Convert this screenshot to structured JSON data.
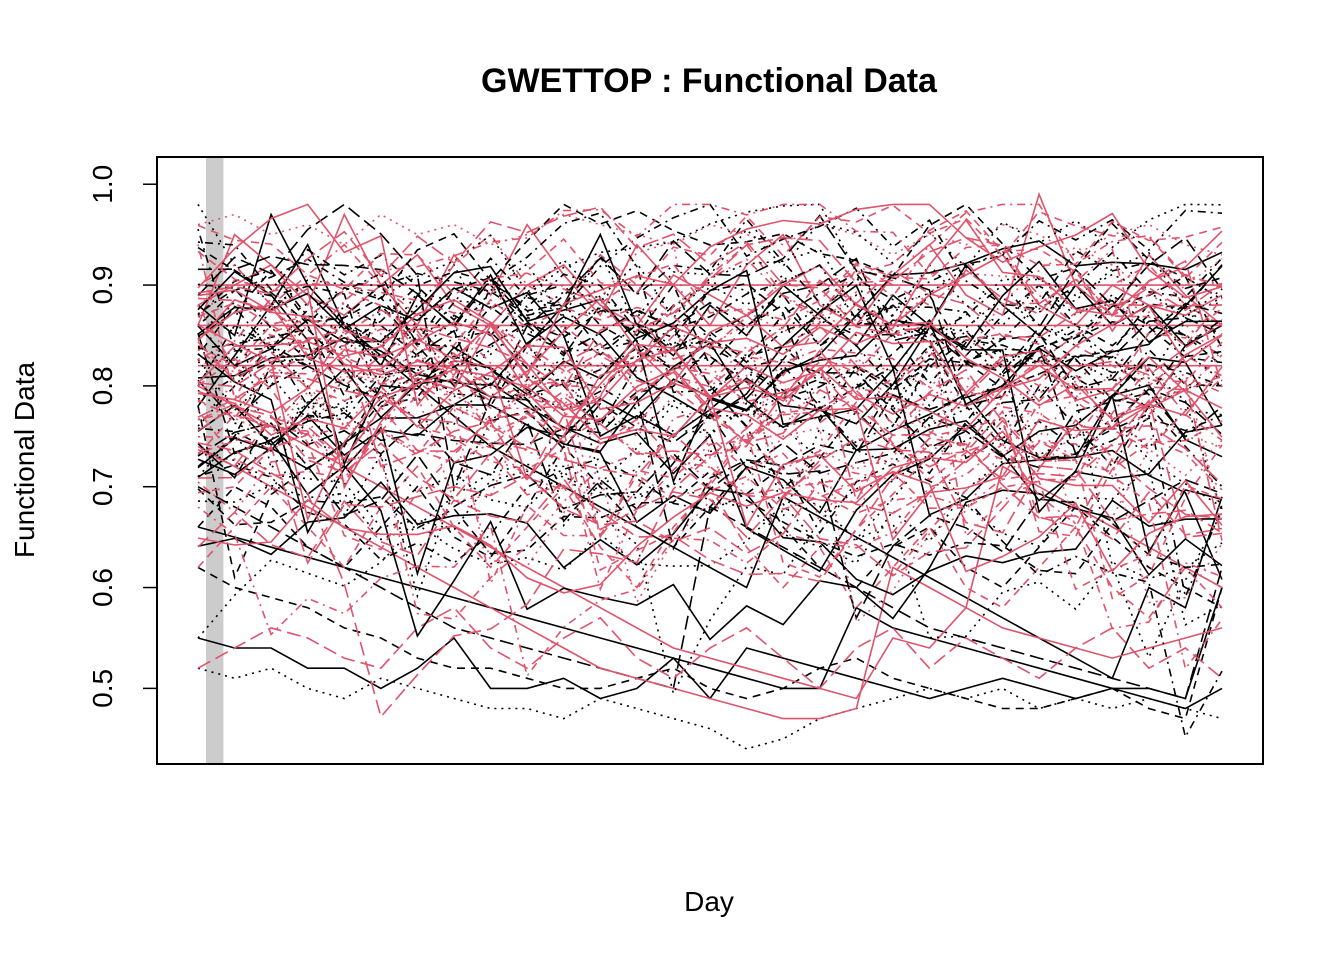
{
  "chart_data": {
    "type": "line",
    "title": "GWETTOP : Functional Data",
    "xlabel": "Day",
    "ylabel": "Functional Data",
    "x_ticks_shown": false,
    "y_ticks": [
      "0.5",
      "0.6",
      "0.7",
      "0.8",
      "0.9",
      "1.0"
    ],
    "xlim": [
      1,
      366
    ],
    "ylim": [
      0.425,
      1.027
    ],
    "highlight_band_x": [
      1,
      4
    ],
    "series_groups": [
      {
        "color": "#000000",
        "count": 55
      },
      {
        "color": "#DF536B",
        "count": 55
      }
    ],
    "series": [
      {
        "color": "#000000",
        "dash": "solid",
        "values": [
          0.55,
          0.54,
          0.54,
          0.52,
          0.52,
          0.5,
          0.52,
          0.55,
          0.5,
          0.5,
          0.51,
          0.49,
          0.5,
          0.53,
          0.49,
          0.54,
          0.53,
          0.52,
          0.51,
          0.5,
          0.49,
          0.5,
          0.51,
          0.5,
          0.49,
          0.5,
          0.49,
          0.48,
          0.5
        ]
      },
      {
        "color": "#000000",
        "dash": "dotted",
        "values": [
          0.52,
          0.51,
          0.52,
          0.5,
          0.49,
          0.51,
          0.5,
          0.49,
          0.48,
          0.48,
          0.47,
          0.49,
          0.48,
          0.47,
          0.46,
          0.44,
          0.45,
          0.47,
          0.48,
          0.49,
          0.5,
          0.49,
          0.5,
          0.48,
          0.49,
          0.48,
          0.49,
          0.48,
          0.47
        ]
      },
      {
        "color": "#000000",
        "dash": "dashed",
        "values": [
          0.62,
          0.6,
          0.59,
          0.58,
          0.56,
          0.55,
          0.53,
          0.52,
          0.52,
          0.51,
          0.5,
          0.5,
          0.51,
          0.52,
          0.5,
          0.49,
          0.5,
          0.52,
          0.53,
          0.51,
          0.5,
          0.49,
          0.48,
          0.48,
          0.49,
          0.5,
          0.48,
          0.47,
          0.6
        ]
      },
      {
        "color": "#000000",
        "dash": "solid",
        "values": [
          0.66,
          0.65,
          0.64,
          0.63,
          0.62,
          0.61,
          0.6,
          0.59,
          0.58,
          0.57,
          0.56,
          0.55,
          0.54,
          0.53,
          0.52,
          0.51,
          0.5,
          0.5,
          0.58,
          0.56,
          0.55,
          0.54,
          0.53,
          0.52,
          0.51,
          0.5,
          0.5,
          0.49,
          0.6
        ]
      },
      {
        "color": "#000000",
        "dash": "longdash",
        "values": [
          0.7,
          0.68,
          0.66,
          0.64,
          0.62,
          0.6,
          0.58,
          0.56,
          0.55,
          0.54,
          0.53,
          0.52,
          0.51,
          0.5,
          0.68,
          0.66,
          0.64,
          0.62,
          0.6,
          0.58,
          0.56,
          0.55,
          0.54,
          0.53,
          0.52,
          0.51,
          0.5,
          0.49,
          0.62
        ]
      },
      {
        "color": "#000000",
        "dash": "solid",
        "values": [
          0.88,
          0.85,
          0.97,
          0.9,
          0.86,
          0.83,
          0.8,
          0.77,
          0.74,
          0.72,
          0.7,
          0.68,
          0.66,
          0.64,
          0.62,
          0.6,
          0.69,
          0.67,
          0.65,
          0.63,
          0.61,
          0.59,
          0.57,
          0.55,
          0.53,
          0.51,
          0.6,
          0.58,
          0.69
        ]
      },
      {
        "color": "#000000",
        "dash": "dotdash",
        "values": [
          0.8,
          0.86,
          0.84,
          0.82,
          0.88,
          0.86,
          0.83,
          0.87,
          0.85,
          0.89,
          0.9,
          0.86,
          0.84,
          0.88,
          0.85,
          0.87,
          0.89,
          0.84,
          0.86,
          0.88,
          0.85,
          0.87,
          0.9,
          0.86,
          0.84,
          0.88,
          0.86,
          0.85,
          0.83
        ]
      },
      {
        "color": "#000000",
        "dash": "dashed",
        "values": [
          0.72,
          0.75,
          0.82,
          0.86,
          0.79,
          0.88,
          0.84,
          0.8,
          0.9,
          0.86,
          0.83,
          0.88,
          0.85,
          0.9,
          0.82,
          0.86,
          0.88,
          0.84,
          0.87,
          0.85,
          0.89,
          0.83,
          0.87,
          0.9,
          0.86,
          0.84,
          0.87,
          0.85,
          0.82
        ]
      },
      {
        "color": "#000000",
        "dash": "dotted",
        "values": [
          0.98,
          0.92,
          0.88,
          0.9,
          0.86,
          0.84,
          0.88,
          0.92,
          0.85,
          0.89,
          0.87,
          0.93,
          0.86,
          0.84,
          0.9,
          0.88,
          0.91,
          0.86,
          0.89,
          0.87,
          0.92,
          0.88,
          0.86,
          0.9,
          0.87,
          0.89,
          0.86,
          0.88,
          0.84
        ]
      },
      {
        "color": "#000000",
        "dash": "solid",
        "values": [
          0.78,
          0.83,
          0.88,
          0.94,
          0.86,
          0.82,
          0.89,
          0.86,
          0.91,
          0.84,
          0.88,
          0.95,
          0.86,
          0.83,
          0.88,
          0.85,
          0.9,
          0.87,
          0.84,
          0.89,
          0.86,
          0.92,
          0.88,
          0.85,
          0.9,
          0.86,
          0.88,
          0.84,
          0.86
        ]
      },
      {
        "color": "#000000",
        "dash": "dashed",
        "values": [
          0.66,
          0.7,
          0.68,
          0.64,
          0.62,
          0.66,
          0.7,
          0.65,
          0.63,
          0.68,
          0.74,
          0.7,
          0.66,
          0.64,
          0.68,
          0.72,
          0.66,
          0.62,
          0.6,
          0.64,
          0.66,
          0.62,
          0.6,
          0.64,
          0.68,
          0.65,
          0.62,
          0.6,
          0.58
        ]
      },
      {
        "color": "#000000",
        "dash": "dotdash",
        "values": [
          0.76,
          0.8,
          0.84,
          0.78,
          0.74,
          0.8,
          0.86,
          0.82,
          0.78,
          0.84,
          0.8,
          0.76,
          0.82,
          0.86,
          0.8,
          0.76,
          0.82,
          0.78,
          0.74,
          0.8,
          0.84,
          0.78,
          0.74,
          0.8,
          0.76,
          0.72,
          0.78,
          0.74,
          0.7
        ]
      },
      {
        "color": "#DF536B",
        "dash": "solid",
        "values": [
          0.88,
          0.9,
          0.92,
          0.89,
          0.87,
          0.9,
          0.93,
          0.88,
          0.86,
          0.9,
          0.92,
          0.88,
          0.86,
          0.91,
          0.89,
          0.87,
          0.9,
          0.92,
          0.88,
          0.86,
          0.89,
          0.91,
          0.93,
          0.88,
          0.86,
          0.9,
          0.88,
          0.87,
          0.89
        ]
      },
      {
        "color": "#DF536B",
        "dash": "dotted",
        "values": [
          0.96,
          0.97,
          0.95,
          0.96,
          0.94,
          0.97,
          0.95,
          0.96,
          0.94,
          0.95,
          0.97,
          0.96,
          0.95,
          0.94,
          0.96,
          0.95,
          0.94,
          0.96,
          0.95,
          0.93,
          0.95,
          0.94,
          0.96,
          0.95,
          0.93,
          0.95,
          0.96,
          0.94,
          0.93
        ]
      },
      {
        "color": "#DF536B",
        "dash": "dashed",
        "values": [
          0.84,
          0.82,
          0.86,
          0.84,
          0.8,
          0.83,
          0.86,
          0.82,
          0.8,
          0.84,
          0.86,
          0.83,
          0.81,
          0.85,
          0.83,
          0.8,
          0.84,
          0.86,
          0.82,
          0.8,
          0.83,
          0.85,
          0.82,
          0.8,
          0.84,
          0.82,
          0.8,
          0.83,
          0.81
        ]
      },
      {
        "color": "#DF536B",
        "dash": "solid",
        "values": [
          0.74,
          0.72,
          0.7,
          0.68,
          0.66,
          0.64,
          0.62,
          0.6,
          0.58,
          0.56,
          0.54,
          0.52,
          0.51,
          0.5,
          0.49,
          0.48,
          0.47,
          0.47,
          0.48,
          0.62,
          0.6,
          0.58,
          0.56,
          0.55,
          0.54,
          0.53,
          0.54,
          0.55,
          0.56
        ]
      },
      {
        "color": "#DF536B",
        "dash": "solid",
        "values": [
          0.8,
          0.78,
          0.76,
          0.74,
          0.72,
          0.7,
          0.68,
          0.66,
          0.64,
          0.62,
          0.6,
          0.58,
          0.56,
          0.54,
          0.53,
          0.52,
          0.51,
          0.5,
          0.49,
          0.55,
          0.54,
          0.58,
          0.72,
          0.7,
          0.68,
          0.66,
          0.64,
          0.62,
          0.6
        ]
      },
      {
        "color": "#DF536B",
        "dash": "longdash",
        "values": [
          0.52,
          0.54,
          0.56,
          0.55,
          0.53,
          0.52,
          0.56,
          0.58,
          0.54,
          0.52,
          0.55,
          0.57,
          0.53,
          0.51,
          0.54,
          0.56,
          0.53,
          0.5,
          0.54,
          0.56,
          0.52,
          0.55,
          0.53,
          0.51,
          0.54,
          0.56,
          0.52,
          0.54,
          0.51
        ]
      },
      {
        "color": "#DF536B",
        "dash": "dotdash",
        "values": [
          0.9,
          0.92,
          0.88,
          0.91,
          0.94,
          0.9,
          0.87,
          0.92,
          0.95,
          0.9,
          0.88,
          0.93,
          0.9,
          0.87,
          0.91,
          0.94,
          0.89,
          0.87,
          0.92,
          0.9,
          0.88,
          0.91,
          0.93,
          0.89,
          0.86,
          0.9,
          0.92,
          0.88,
          0.86
        ]
      },
      {
        "color": "#DF536B",
        "dash": "solid",
        "values": [
          0.86,
          0.95,
          0.92,
          0.88,
          0.97,
          0.9,
          0.86,
          0.93,
          0.89,
          0.96,
          0.91,
          0.87,
          0.94,
          0.9,
          0.86,
          0.92,
          0.95,
          0.88,
          0.86,
          0.91,
          0.94,
          0.89,
          0.87,
          0.99,
          0.9,
          0.87,
          0.93,
          0.89,
          0.86
        ]
      },
      {
        "color": "#DF536B",
        "dash": "dashed",
        "values": [
          0.62,
          0.66,
          0.7,
          0.66,
          0.62,
          0.68,
          0.72,
          0.66,
          0.62,
          0.66,
          0.7,
          0.64,
          0.6,
          0.66,
          0.7,
          0.64,
          0.6,
          0.64,
          0.58,
          0.62,
          0.66,
          0.6,
          0.58,
          0.62,
          0.66,
          0.6,
          0.57,
          0.62,
          0.58
        ]
      },
      {
        "color": "#DF536B",
        "dash": "dotted",
        "values": [
          0.8,
          0.78,
          0.82,
          0.8,
          0.76,
          0.8,
          0.84,
          0.78,
          0.76,
          0.8,
          0.82,
          0.78,
          0.75,
          0.79,
          0.82,
          0.78,
          0.76,
          0.8,
          0.83,
          0.78,
          0.76,
          0.8,
          0.78,
          0.75,
          0.79,
          0.81,
          0.77,
          0.75,
          0.74
        ]
      },
      {
        "color": "#DF536B",
        "dash": "solid",
        "values": [
          0.86,
          0.86,
          0.86,
          0.86,
          0.86,
          0.86,
          0.86,
          0.86,
          0.86,
          0.86,
          0.86,
          0.86,
          0.86,
          0.86,
          0.86,
          0.86,
          0.86,
          0.86,
          0.86,
          0.86,
          0.86,
          0.86,
          0.86,
          0.86,
          0.86,
          0.86,
          0.86,
          0.86,
          0.86
        ]
      },
      {
        "color": "#DF536B",
        "dash": "solid",
        "values": [
          0.9,
          0.9,
          0.9,
          0.9,
          0.9,
          0.9,
          0.9,
          0.9,
          0.9,
          0.9,
          0.9,
          0.9,
          0.9,
          0.9,
          0.9,
          0.9,
          0.9,
          0.9,
          0.9,
          0.9,
          0.9,
          0.9,
          0.9,
          0.9,
          0.9,
          0.9,
          0.9,
          0.9,
          0.9
        ]
      },
      {
        "color": "#DF536B",
        "dash": "solid",
        "values": [
          0.82,
          0.82,
          0.82,
          0.82,
          0.82,
          0.82,
          0.82,
          0.82,
          0.82,
          0.82,
          0.82,
          0.82,
          0.82,
          0.82,
          0.82,
          0.82,
          0.82,
          0.82,
          0.82,
          0.82,
          0.82,
          0.82,
          0.82,
          0.82,
          0.82,
          0.82,
          0.82,
          0.82,
          0.82
        ]
      }
    ]
  }
}
